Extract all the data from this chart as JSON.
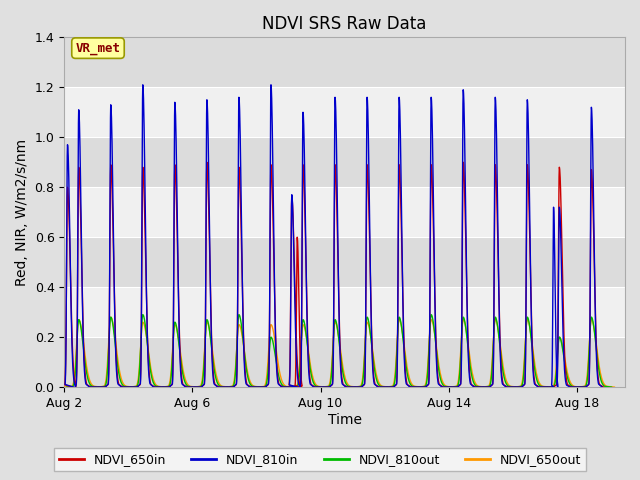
{
  "title": "NDVI SRS Raw Data",
  "xlabel": "Time",
  "ylabel": "Red, NIR, W/m2/s/nm",
  "ylim": [
    0.0,
    1.4
  ],
  "annotation_text": "VR_met",
  "annotation_bg": "#FFFFA0",
  "annotation_border": "#999900",
  "annotation_text_color": "#880000",
  "series": {
    "NDVI_650in": {
      "color": "#CC0000"
    },
    "NDVI_810in": {
      "color": "#0000CC"
    },
    "NDVI_810out": {
      "color": "#00BB00"
    },
    "NDVI_650out": {
      "color": "#FF9900"
    }
  },
  "fig_bg_color": "#E0E0E0",
  "plot_bg": "#DCDCDC",
  "band_colors": [
    "#DCDCDC",
    "#F0F0F0"
  ],
  "grid_line_color": "#FFFFFF",
  "title_fontsize": 12,
  "axis_label_fontsize": 10,
  "tick_fontsize": 9,
  "legend_fontsize": 9,
  "peak_650in": [
    0.88,
    0.89,
    0.88,
    0.89,
    0.9,
    0.88,
    0.89,
    0.89,
    0.89,
    0.89,
    0.89,
    0.89,
    0.9,
    0.89,
    0.89,
    0.88,
    0.87
  ],
  "peak_810in": [
    1.11,
    1.13,
    1.21,
    1.14,
    1.15,
    1.16,
    1.21,
    1.1,
    1.16,
    1.16,
    1.16,
    1.16,
    1.19,
    1.16,
    1.15,
    0.72,
    1.12
  ],
  "peak_810out": [
    0.27,
    0.28,
    0.29,
    0.26,
    0.27,
    0.29,
    0.2,
    0.27,
    0.27,
    0.28,
    0.28,
    0.29,
    0.28,
    0.28,
    0.28,
    0.2,
    0.28
  ],
  "peak_650out": [
    0.27,
    0.28,
    0.26,
    0.25,
    0.26,
    0.25,
    0.25,
    0.25,
    0.26,
    0.26,
    0.27,
    0.27,
    0.27,
    0.27,
    0.27,
    0.2,
    0.27
  ],
  "special_810in": [
    0.97,
    null,
    null,
    null,
    null,
    null,
    null,
    0.77,
    null,
    null,
    null,
    null,
    null,
    null,
    null,
    null,
    null
  ],
  "special_650in": [
    0.8,
    null,
    null,
    null,
    null,
    null,
    null,
    0.76,
    null,
    null,
    null,
    null,
    null,
    null,
    null,
    null,
    null
  ],
  "special_810in_2": [
    null,
    null,
    null,
    null,
    null,
    null,
    null,
    null,
    null,
    null,
    null,
    null,
    null,
    null,
    null,
    0.72,
    null
  ],
  "special_650in_2": [
    null,
    null,
    null,
    null,
    null,
    null,
    null,
    0.6,
    null,
    null,
    null,
    null,
    null,
    null,
    null,
    null,
    null
  ],
  "num_cycles": 17,
  "start_day": 2.0,
  "period": 1.0,
  "xlim": [
    2.0,
    19.5
  ],
  "xtick_pos": [
    2,
    6,
    10,
    14,
    18
  ],
  "xtick_labels": [
    "Aug 2",
    "Aug 6",
    "Aug 10",
    "Aug 14",
    "Aug 18"
  ],
  "ytick_vals": [
    0.0,
    0.2,
    0.4,
    0.6,
    0.8,
    1.0,
    1.2,
    1.4
  ]
}
